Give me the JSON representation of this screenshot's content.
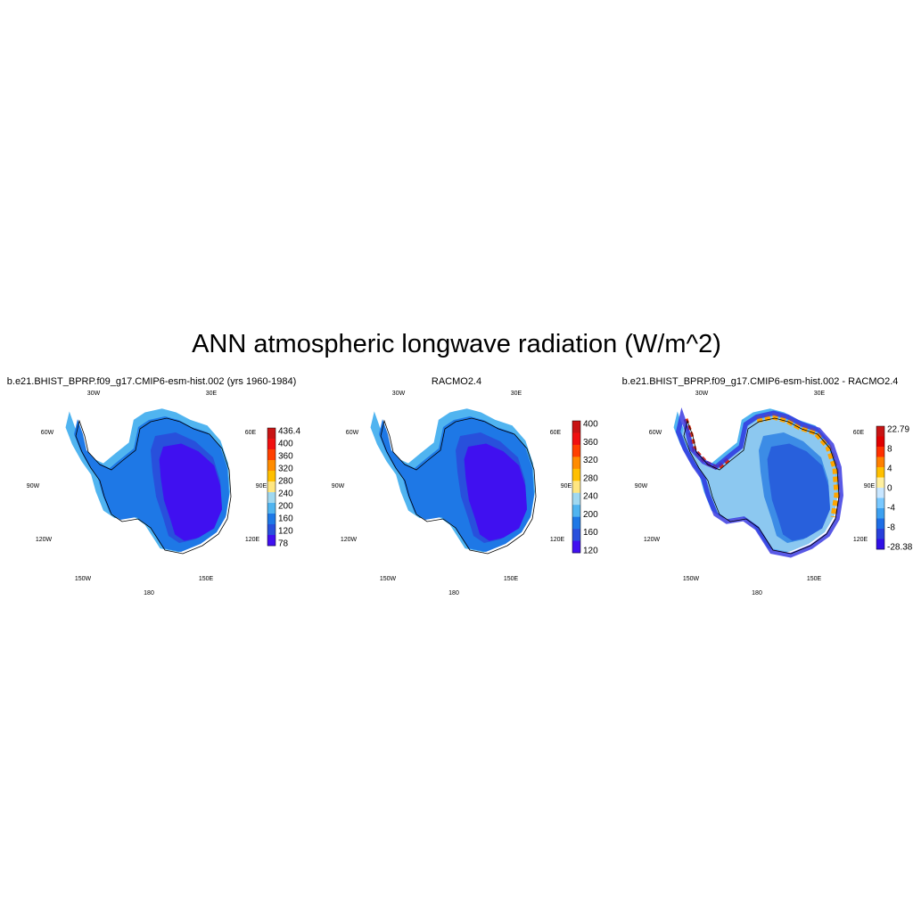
{
  "figure": {
    "title": "ANN atmospheric longwave radiation (W/m^2)"
  },
  "panels": [
    {
      "id": "model",
      "title": "b.e21.BHIST_BPRP.f09_g17.CMIP6-esm-hist.002 (yrs 1960-1984)",
      "lon_labels": [
        "30W",
        "30E",
        "60W",
        "60E",
        "90W",
        "90E",
        "120W",
        "120E",
        "150W",
        "150E",
        "180"
      ],
      "colorbar": {
        "labels": [
          "436.4",
          "400",
          "360",
          "320",
          "280",
          "240",
          "200",
          "160",
          "120",
          "78"
        ],
        "colors": [
          "#c81414",
          "#f01010",
          "#ff4000",
          "#ff8c00",
          "#ffbf00",
          "#ffe680",
          "#a0d8f0",
          "#50b4f0",
          "#1e78e6",
          "#2850dc",
          "#4010f0"
        ]
      }
    },
    {
      "id": "obs",
      "title": "RACMO2.4",
      "lon_labels": [
        "30W",
        "30E",
        "60W",
        "60E",
        "90W",
        "90E",
        "120W",
        "120E",
        "150W",
        "150E",
        "180"
      ],
      "colorbar": {
        "labels": [
          "400",
          "360",
          "320",
          "280",
          "240",
          "200",
          "160",
          "120"
        ],
        "colors": [
          "#c81414",
          "#f01010",
          "#ff4000",
          "#ff8c00",
          "#ffbf00",
          "#ffe680",
          "#a0d8f0",
          "#50b4f0",
          "#1e78e6",
          "#2850dc",
          "#4010f0"
        ]
      }
    },
    {
      "id": "diff",
      "title": "b.e21.BHIST_BPRP.f09_g17.CMIP6-esm-hist.002 - RACMO2.4",
      "lon_labels": [
        "30W",
        "30E",
        "60W",
        "60E",
        "90W",
        "90E",
        "120W",
        "120E",
        "150W",
        "150E",
        "180"
      ],
      "colorbar": {
        "labels": [
          "22.79",
          "8",
          "4",
          "0",
          "-4",
          "-8",
          "-28.38"
        ],
        "colors": [
          "#c81414",
          "#e00000",
          "#ff3000",
          "#ff8000",
          "#ffc000",
          "#fff0a0",
          "#c8e6ff",
          "#78c8ff",
          "#3ca0f0",
          "#1e6ee6",
          "#2840dc",
          "#3010e6"
        ]
      }
    }
  ],
  "colors": {
    "ice_interior": "#4010f0",
    "ice_middle": "#2850dc",
    "ice_outer": "#1e78e6",
    "ice_coast": "#50b4f0",
    "positive_anomaly": "#ffa500",
    "negative_anomaly": "#3030e0"
  }
}
